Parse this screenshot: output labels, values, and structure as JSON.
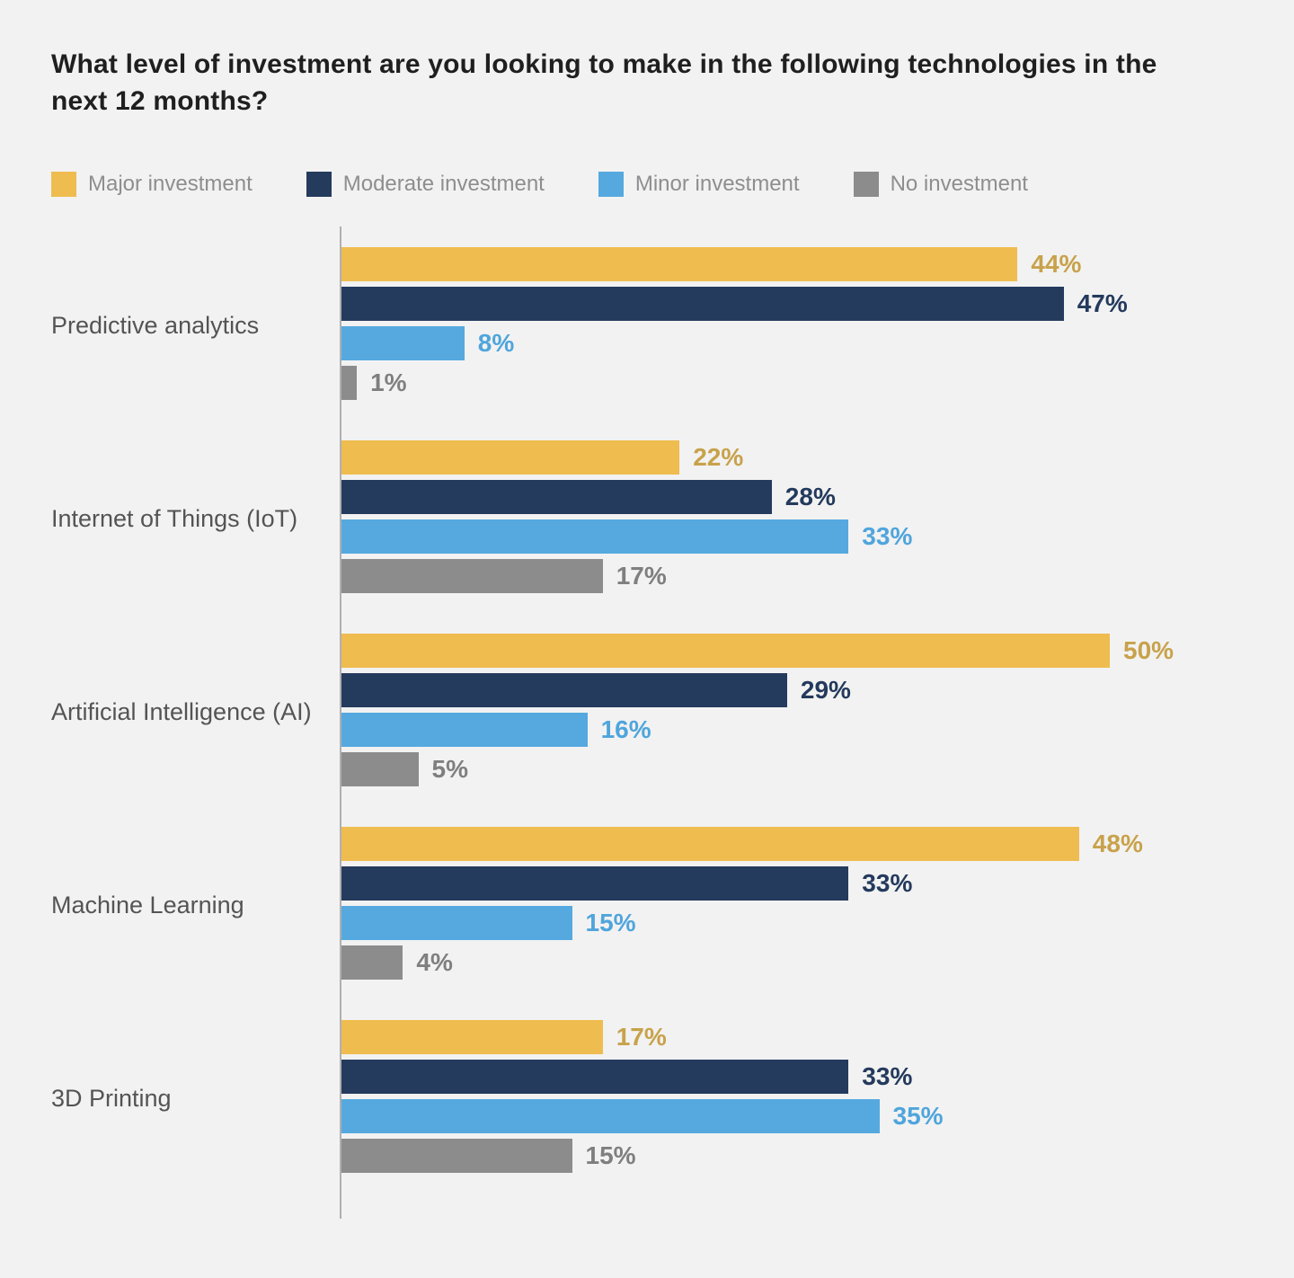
{
  "title": "What level of investment are you looking to make in the following technologies in the next 12 months?",
  "legend": [
    {
      "label": "Major investment",
      "color": "#efbc4f"
    },
    {
      "label": "Moderate investment",
      "color": "#253b5e"
    },
    {
      "label": "Minor investment",
      "color": "#55a9df"
    },
    {
      "label": "No investment",
      "color": "#8c8c8c"
    }
  ],
  "chart_data": {
    "type": "bar",
    "orientation": "horizontal",
    "title": "What level of investment are you looking to make in the following technologies in the next 12 months?",
    "categories": [
      "Predictive analytics",
      "Internet of Things (IoT)",
      "Artificial Intelligence (AI)",
      "Machine Learning",
      "3D Printing"
    ],
    "series": [
      {
        "name": "Major investment",
        "color": "#efbc4f",
        "label_color": "#c8a24b",
        "values": [
          44,
          22,
          50,
          48,
          17
        ]
      },
      {
        "name": "Moderate investment",
        "color": "#253b5e",
        "label_color": "#243a5d",
        "values": [
          47,
          28,
          29,
          33,
          33
        ]
      },
      {
        "name": "Minor investment",
        "color": "#55a9df",
        "label_color": "#4fa5dc",
        "values": [
          8,
          33,
          16,
          15,
          35
        ]
      },
      {
        "name": "No investment",
        "color": "#8c8c8c",
        "label_color": "#7f7f7f",
        "values": [
          1,
          17,
          5,
          4,
          15
        ]
      }
    ],
    "value_suffix": "%",
    "xlim": [
      0,
      62
    ],
    "grid": false,
    "legend_position": "top",
    "background_color": "#f2f2f2",
    "axis_color": "#b0b0b0"
  }
}
